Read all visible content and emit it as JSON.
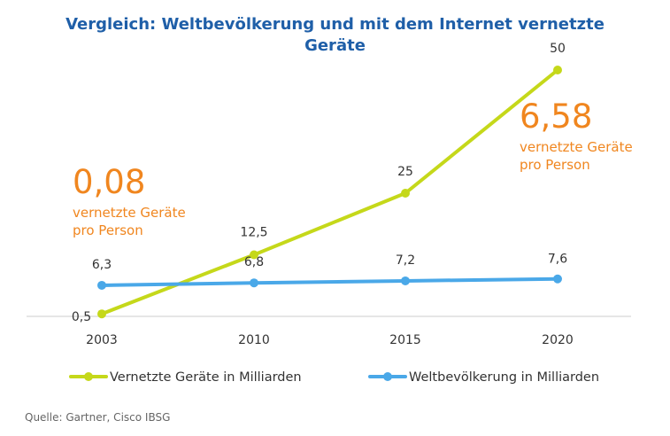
{
  "chart_data": {
    "type": "line",
    "title": "Vergleich: Weltbevölkerung und mit dem Internet vernetzte Geräte",
    "categories": [
      "2003",
      "2010",
      "2015",
      "2020"
    ],
    "series": [
      {
        "name": "Vernetzte Geräte in Milliarden",
        "values": [
          0.5,
          12.5,
          25,
          50
        ],
        "labels": [
          "0,5",
          "12,5",
          "25",
          "50"
        ],
        "color": "#c5d81a"
      },
      {
        "name": "Weltbevölkerung in Milliarden",
        "values": [
          6.3,
          6.8,
          7.2,
          7.6
        ],
        "labels": [
          "6,3",
          "6,8",
          "7,2",
          "7,6"
        ],
        "color": "#4aa8e8"
      }
    ],
    "ylim": [
      0,
      50
    ],
    "grid": false,
    "legend": "bottom"
  },
  "annotations": [
    {
      "value": "0,08",
      "text_line1": "vernetzte Geräte",
      "text_line2": "pro Person"
    },
    {
      "value": "6,58",
      "text_line1": "vernetzte Geräte",
      "text_line2": "pro Person"
    }
  ],
  "source": "Quelle: Gartner, Cisco IBSG",
  "colors": {
    "title": "#1f5fa8",
    "annotation": "#f0861f",
    "axis": "#cccccc",
    "text": "#333333"
  }
}
